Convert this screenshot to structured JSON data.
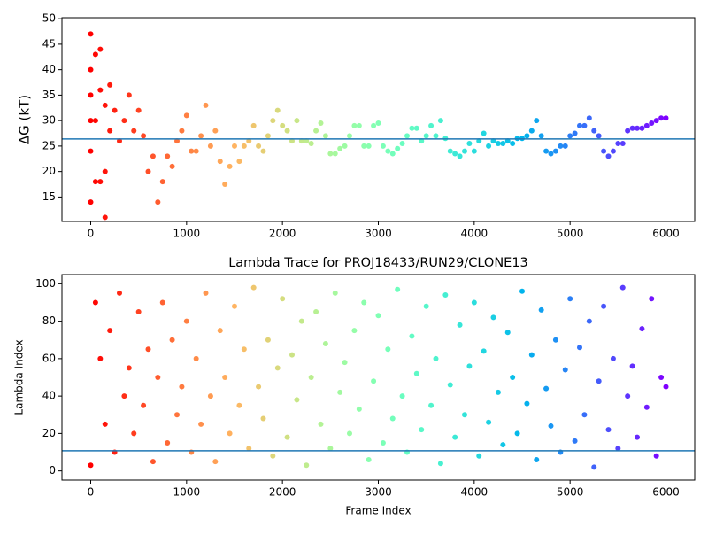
{
  "chart_data": [
    {
      "type": "scatter",
      "ylabel": "ΔG (kT)",
      "colormap": "rainbow_r",
      "hline": 26.4,
      "hline_color": "#1f77b4",
      "xlim": [
        -300,
        6300
      ],
      "xticks": [
        0,
        1000,
        2000,
        3000,
        4000,
        5000,
        6000
      ],
      "ylim": [
        10.2,
        50.2
      ],
      "yticks": [
        15,
        20,
        25,
        30,
        35,
        40,
        45,
        50
      ],
      "x": [
        0,
        0,
        0,
        0,
        0,
        0,
        50,
        50,
        50,
        100,
        100,
        100,
        150,
        150,
        150,
        200,
        200,
        250,
        300,
        350,
        400,
        450,
        500,
        550,
        600,
        650,
        700,
        750,
        800,
        850,
        900,
        950,
        1000,
        1050,
        1100,
        1150,
        1200,
        1250,
        1300,
        1350,
        1400,
        1450,
        1500,
        1550,
        1600,
        1650,
        1700,
        1750,
        1800,
        1850,
        1900,
        1950,
        2000,
        2050,
        2100,
        2150,
        2200,
        2250,
        2300,
        2350,
        2400,
        2450,
        2500,
        2550,
        2600,
        2650,
        2700,
        2750,
        2800,
        2850,
        2900,
        2950,
        3000,
        3050,
        3100,
        3150,
        3200,
        3250,
        3300,
        3350,
        3400,
        3450,
        3500,
        3550,
        3600,
        3650,
        3700,
        3750,
        3800,
        3850,
        3900,
        3950,
        4000,
        4050,
        4100,
        4150,
        4200,
        4250,
        4300,
        4350,
        4400,
        4450,
        4500,
        4550,
        4600,
        4650,
        4700,
        4750,
        4800,
        4850,
        4900,
        4950,
        5000,
        5050,
        5100,
        5150,
        5200,
        5250,
        5300,
        5350,
        5400,
        5450,
        5500,
        5550,
        5600,
        5650,
        5700,
        5750,
        5800,
        5850,
        5900,
        5950,
        6000
      ],
      "values": [
        47,
        40,
        35,
        30,
        24,
        14,
        43,
        30,
        18,
        44,
        36,
        18,
        11,
        20,
        33,
        37,
        28,
        32,
        26,
        30,
        35,
        28,
        32,
        27,
        20,
        23,
        14,
        18,
        23,
        21,
        26,
        28,
        31,
        24,
        24,
        27,
        33,
        25,
        28,
        22,
        17.5,
        21,
        25,
        22,
        25,
        26,
        29,
        25,
        24,
        27,
        30,
        32,
        29,
        28,
        26,
        30,
        26,
        26,
        25.5,
        28,
        29.5,
        27,
        23.5,
        23.5,
        24.5,
        25,
        27,
        29,
        29,
        25,
        25,
        29,
        29.5,
        25,
        24,
        23.5,
        24.5,
        25.5,
        27,
        28.5,
        28.5,
        26,
        27,
        29,
        27,
        30,
        26.5,
        24,
        23.5,
        23,
        24,
        25.5,
        24,
        26,
        27.5,
        25,
        26,
        25.5,
        25.5,
        26,
        25.5,
        26.5,
        26.5,
        27,
        28,
        30,
        27,
        24,
        23.5,
        24,
        25,
        25,
        27,
        27.5,
        29,
        29,
        30.5,
        28,
        27,
        24,
        23,
        24,
        25.5,
        25.5,
        28,
        28.5,
        28.5,
        28.5,
        29,
        29.5,
        30,
        30.5,
        30.5
      ]
    },
    {
      "type": "scatter",
      "title": "Lambda Trace for PROJ18433/RUN29/CLONE13",
      "xlabel": "Frame Index",
      "ylabel": "Lambda Index",
      "colormap": "rainbow_r",
      "hline": 10.8,
      "hline_color": "#1f77b4",
      "xlim": [
        -300,
        6300
      ],
      "xticks": [
        0,
        1000,
        2000,
        3000,
        4000,
        5000,
        6000
      ],
      "ylim": [
        -4.9,
        104.9
      ],
      "yticks": [
        0,
        20,
        40,
        60,
        80,
        100
      ],
      "x": [
        0,
        50,
        100,
        150,
        200,
        250,
        300,
        350,
        400,
        450,
        500,
        550,
        600,
        650,
        700,
        750,
        800,
        850,
        900,
        950,
        1000,
        1050,
        1100,
        1150,
        1200,
        1250,
        1300,
        1350,
        1400,
        1450,
        1500,
        1550,
        1600,
        1650,
        1700,
        1750,
        1800,
        1850,
        1900,
        1950,
        2000,
        2050,
        2100,
        2150,
        2200,
        2250,
        2300,
        2350,
        2400,
        2450,
        2500,
        2550,
        2600,
        2650,
        2700,
        2750,
        2800,
        2850,
        2900,
        2950,
        3000,
        3050,
        3100,
        3150,
        3200,
        3250,
        3300,
        3350,
        3400,
        3450,
        3500,
        3550,
        3600,
        3650,
        3700,
        3750,
        3800,
        3850,
        3900,
        3950,
        4000,
        4050,
        4100,
        4150,
        4200,
        4250,
        4300,
        4350,
        4400,
        4450,
        4500,
        4550,
        4600,
        4650,
        4700,
        4750,
        4800,
        4850,
        4900,
        4950,
        5000,
        5050,
        5100,
        5150,
        5200,
        5250,
        5300,
        5350,
        5400,
        5450,
        5500,
        5550,
        5600,
        5650,
        5700,
        5750,
        5800,
        5850,
        5900,
        5950,
        6000
      ],
      "values": [
        3,
        90,
        60,
        25,
        75,
        10,
        95,
        40,
        55,
        20,
        85,
        35,
        65,
        5,
        50,
        90,
        15,
        70,
        30,
        45,
        80,
        10,
        60,
        25,
        95,
        40,
        5,
        75,
        50,
        20,
        88,
        35,
        65,
        12,
        98,
        45,
        28,
        70,
        8,
        55,
        92,
        18,
        62,
        38,
        80,
        3,
        50,
        85,
        25,
        68,
        12,
        95,
        42,
        58,
        20,
        75,
        33,
        90,
        6,
        48,
        83,
        15,
        65,
        28,
        97,
        40,
        10,
        72,
        52,
        22,
        88,
        35,
        60,
        4,
        94,
        46,
        18,
        78,
        30,
        56,
        90,
        8,
        64,
        26,
        82,
        42,
        14,
        74,
        50,
        20,
        96,
        36,
        62,
        6,
        86,
        44,
        24,
        70,
        10,
        54,
        92,
        16,
        66,
        30,
        80,
        2,
        48,
        88,
        22,
        60,
        12,
        98,
        40,
        56,
        18,
        76,
        34,
        92,
        8,
        50,
        45
      ]
    }
  ]
}
